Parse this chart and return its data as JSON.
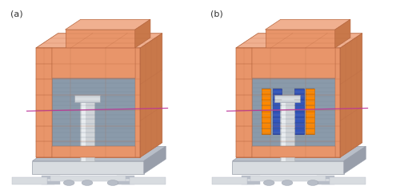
{
  "fig_width": 5.0,
  "fig_height": 2.43,
  "dpi": 100,
  "background_color": "#ffffff",
  "label_a": "(a)",
  "label_b": "(b)",
  "label_fontsize": 8,
  "label_color": "#333333",
  "peach_front": "#E8956A",
  "peach_side": "#C8784A",
  "peach_top": "#F0B090",
  "peach_edge": "#B86840",
  "gray_panel": "#8A9AAA",
  "gray_stripe": "#7A8A9A",
  "gray_panel_side": "#6A7A8A",
  "magenta_line": "#BB3399",
  "orange_spacer": "#FF8800",
  "blue_spacer": "#3355BB",
  "base_light": "#D8DCE0",
  "base_mid": "#B8BEC8",
  "base_dark": "#989EAA",
  "pole_color": "#D0D4D8",
  "pole_shadow": "#B0B4B8"
}
